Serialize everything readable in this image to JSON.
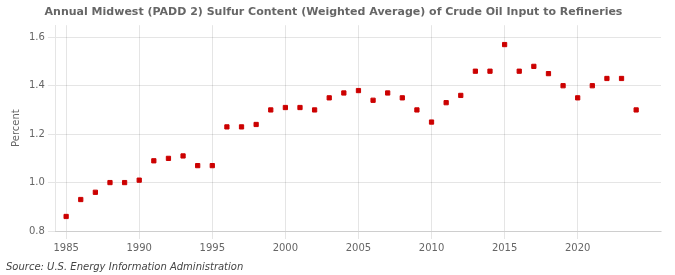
{
  "chart_data": {
    "type": "scatter",
    "title": "Annual Midwest (PADD 2) Sulfur Content (Weighted Average) of Crude Oil Input to Refineries",
    "ylabel": "Percent",
    "source": "Source: U.S. Energy Information Administration",
    "color": "#cc0000",
    "marker": "square",
    "grid": true,
    "xlim": [
      1984.3,
      2025.7
    ],
    "ylim": [
      0.8,
      1.65
    ],
    "xticks": [
      1985,
      1990,
      1995,
      2000,
      2005,
      2010,
      2015,
      2020
    ],
    "yticks": [
      0.8,
      {
        "value": 1,
        "label": "1.0"
      },
      1.2,
      1.4,
      1.6
    ],
    "x": [
      1985,
      1986,
      1987,
      1988,
      1989,
      1990,
      1991,
      1992,
      1993,
      1994,
      1995,
      1996,
      1997,
      1998,
      1999,
      2000,
      2001,
      2002,
      2003,
      2004,
      2005,
      2006,
      2007,
      2008,
      2009,
      2010,
      2011,
      2012,
      2013,
      2014,
      2015,
      2016,
      2017,
      2018,
      2019,
      2020,
      2021,
      2022,
      2023,
      2024
    ],
    "values": [
      0.86,
      0.93,
      0.96,
      1.0,
      1.0,
      1.01,
      1.09,
      1.1,
      1.11,
      1.07,
      1.07,
      1.23,
      1.23,
      1.24,
      1.3,
      1.31,
      1.31,
      1.3,
      1.35,
      1.37,
      1.38,
      1.34,
      1.37,
      1.35,
      1.3,
      1.25,
      1.33,
      1.36,
      1.46,
      1.46,
      1.57,
      1.46,
      1.48,
      1.45,
      1.4,
      1.35,
      1.4,
      1.43,
      1.43,
      1.3
    ]
  }
}
